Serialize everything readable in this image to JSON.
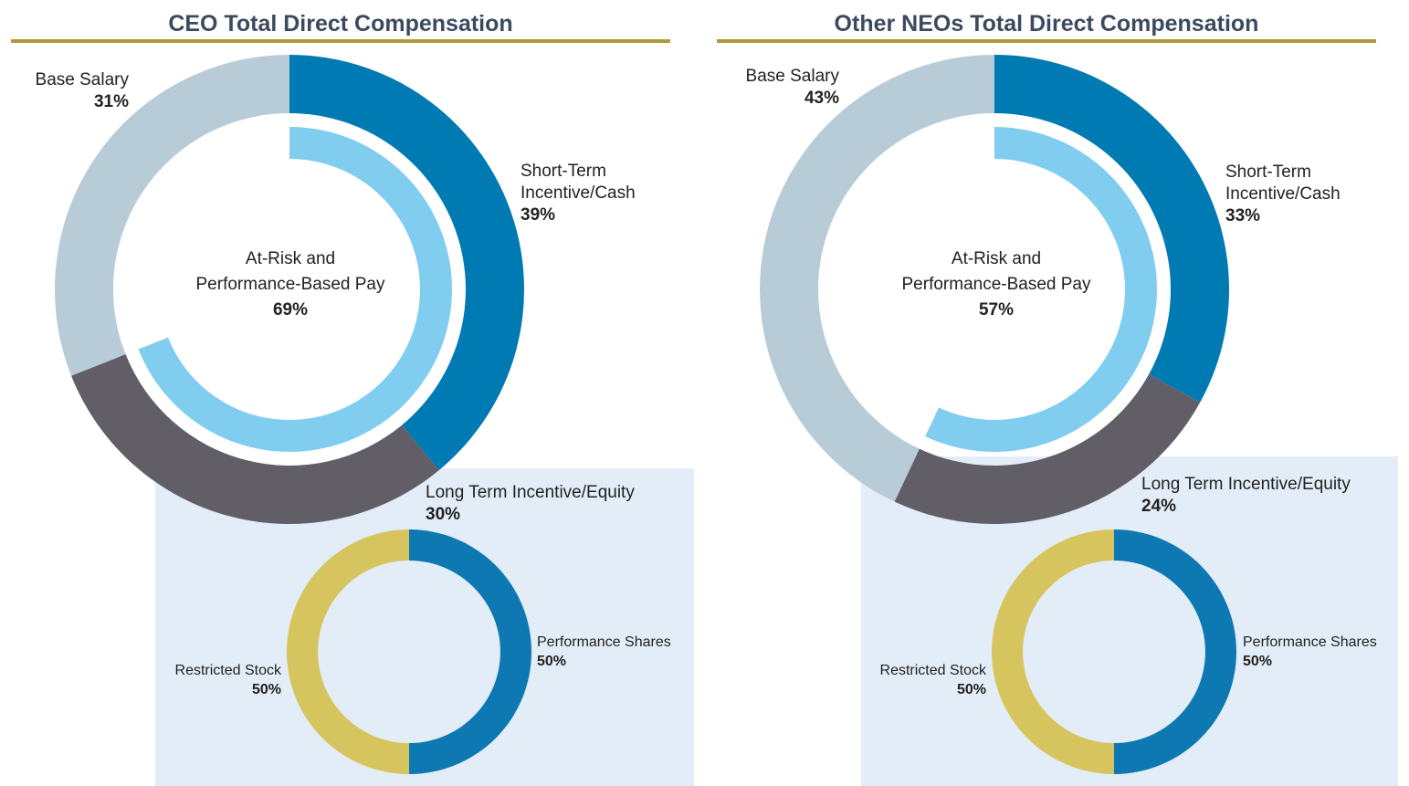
{
  "colors": {
    "base_salary": "#b8ccd8",
    "short_term": "#007ab3",
    "long_term": "#625e68",
    "at_risk_arc": "#80cdf0",
    "performance_shares": "#0e78b2",
    "restricted_stock": "#d6c55e",
    "title_rule": "#b09a3a",
    "sub_bg": "#e3edf7"
  },
  "chart_data": [
    {
      "type": "pie",
      "title": "CEO Total Direct Compensation",
      "main": {
        "labels": [
          "Short-Term Incentive/Cash",
          "Long Term Incentive/Equity",
          "Base Salary"
        ],
        "label_lines": [
          [
            "Short-Term",
            "Incentive/Cash"
          ],
          [
            "Long Term Incentive/Equity"
          ],
          [
            "Base Salary"
          ]
        ],
        "values": [
          39,
          30,
          31
        ],
        "value_labels": [
          "39%",
          "30%",
          "31%"
        ]
      },
      "at_risk": {
        "label_lines": [
          "At-Risk and",
          "Performance-Based Pay"
        ],
        "value": 69,
        "value_label": "69%"
      },
      "equity_split": {
        "labels": [
          "Performance Shares",
          "Restricted Stock"
        ],
        "values": [
          50,
          50
        ],
        "value_labels": [
          "50%",
          "50%"
        ]
      }
    },
    {
      "type": "pie",
      "title": "Other NEOs Total Direct Compensation",
      "main": {
        "labels": [
          "Short-Term Incentive/Cash",
          "Long Term Incentive/Equity",
          "Base Salary"
        ],
        "label_lines": [
          [
            "Short-Term",
            "Incentive/Cash"
          ],
          [
            "Long Term Incentive/Equity"
          ],
          [
            "Base Salary"
          ]
        ],
        "values": [
          33,
          24,
          43
        ],
        "value_labels": [
          "33%",
          "24%",
          "43%"
        ]
      },
      "at_risk": {
        "label_lines": [
          "At-Risk and",
          "Performance-Based Pay"
        ],
        "value": 57,
        "value_label": "57%"
      },
      "equity_split": {
        "labels": [
          "Performance Shares",
          "Restricted Stock"
        ],
        "values": [
          50,
          50
        ],
        "value_labels": [
          "50%",
          "50%"
        ]
      }
    }
  ]
}
